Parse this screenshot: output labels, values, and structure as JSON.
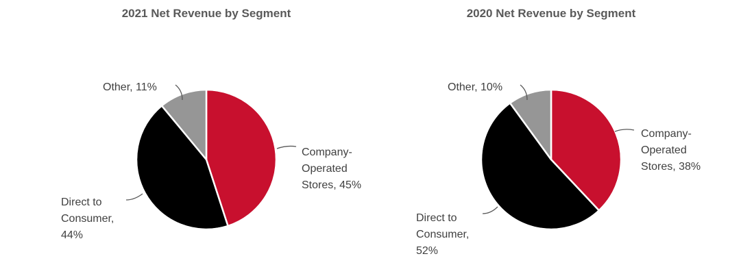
{
  "chart_data": [
    {
      "type": "pie",
      "title": "2021 Net Revenue by Segment",
      "slices": [
        {
          "name": "Company-Operated Stores",
          "value": 45,
          "color": "#C8102E",
          "label_lines": [
            "Company-",
            "Operated",
            "Stores, 45%"
          ]
        },
        {
          "name": "Direct to Consumer",
          "value": 44,
          "color": "#000000",
          "label_lines": [
            "Direct to",
            "Consumer,",
            "44%"
          ]
        },
        {
          "name": "Other",
          "value": 11,
          "color": "#969696",
          "label_lines": [
            "Other, 11%"
          ]
        }
      ]
    },
    {
      "type": "pie",
      "title": "2020 Net Revenue by Segment",
      "slices": [
        {
          "name": "Company-Operated Stores",
          "value": 38,
          "color": "#C8102E",
          "label_lines": [
            "Company-",
            "Operated",
            "Stores, 38%"
          ]
        },
        {
          "name": "Direct to Consumer",
          "value": 52,
          "color": "#000000",
          "label_lines": [
            "Direct to",
            "Consumer,",
            "52%"
          ]
        },
        {
          "name": "Other",
          "value": 10,
          "color": "#969696",
          "label_lines": [
            "Other, 10%"
          ]
        }
      ]
    }
  ]
}
